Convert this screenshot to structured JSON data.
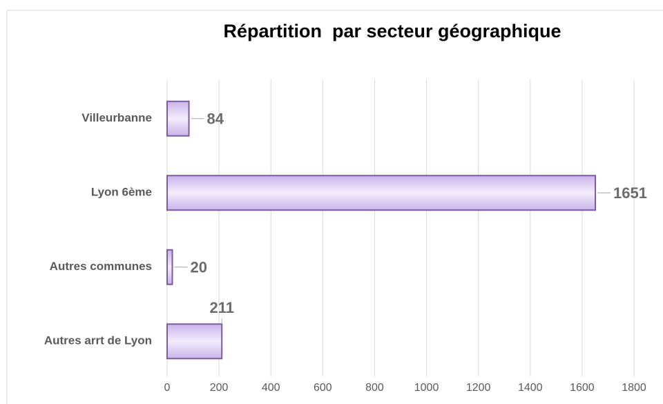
{
  "chart_data": {
    "type": "bar",
    "orientation": "horizontal",
    "title": "Répartition  par secteur géographique",
    "categories": [
      "Villeurbanne",
      "Lyon 6ème",
      "Autres communes",
      "Autres arrt de Lyon"
    ],
    "values": [
      84,
      1651,
      20,
      211
    ],
    "color": "#d9c8ef",
    "xlim": [
      0,
      1800
    ],
    "xticks": [
      0,
      200,
      400,
      600,
      800,
      1000,
      1200,
      1400,
      1600,
      1800
    ],
    "grid": true
  }
}
